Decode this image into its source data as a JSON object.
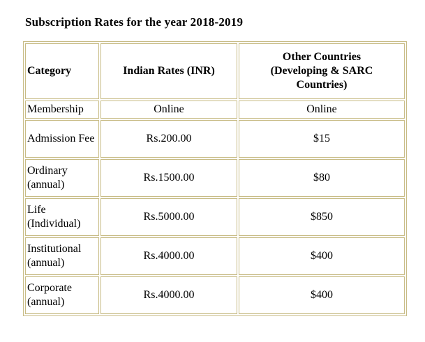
{
  "page": {
    "title": "Subscription Rates for the year 2018-2019"
  },
  "colors": {
    "table_border": "#c8bc86",
    "cell_background": "#ffffff",
    "text": "#000000"
  },
  "table": {
    "columns": [
      "Category",
      "Indian Rates (INR)",
      "Other Countries\n(Developing & SARC\nCountries)"
    ],
    "rows": [
      {
        "category": "Membership",
        "indian_rate": "Online",
        "other_countries_rate": "Online"
      },
      {
        "category": "Admission Fee",
        "indian_rate": "Rs.200.00",
        "other_countries_rate": "$15"
      },
      {
        "category": "Ordinary (annual)",
        "indian_rate": "Rs.1500.00",
        "other_countries_rate": "$80"
      },
      {
        "category": "Life (Individual)",
        "indian_rate": "Rs.5000.00",
        "other_countries_rate": "$850"
      },
      {
        "category": "Institutional (annual)",
        "indian_rate": "Rs.4000.00",
        "other_countries_rate": "$400"
      },
      {
        "category": "Corporate (annual)",
        "indian_rate": "Rs.4000.00",
        "other_countries_rate": "$400"
      }
    ]
  }
}
